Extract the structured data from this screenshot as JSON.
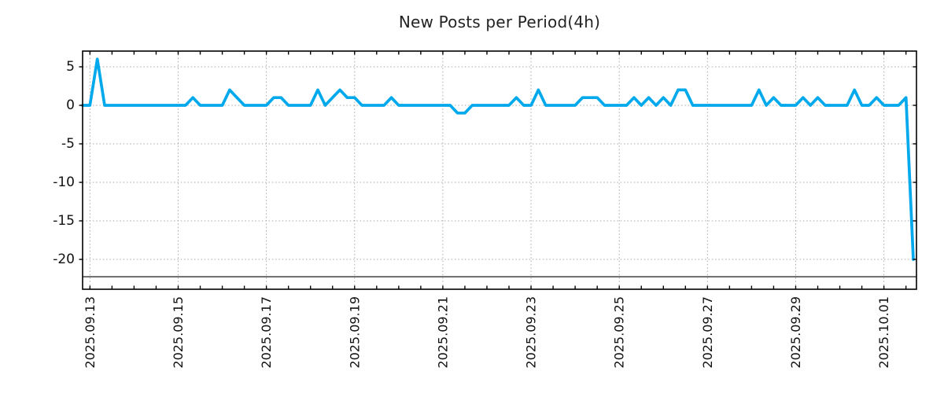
{
  "chart_data": {
    "type": "line",
    "title": "New Posts per Period(4h)",
    "period_hours": 4,
    "line_color": "#00a8ec",
    "grid_color": "#a8a8a8",
    "axis_color": "#000000",
    "grid_style": "dotted",
    "legend": "none",
    "values": [
      0,
      0,
      6,
      0,
      0,
      0,
      0,
      0,
      0,
      0,
      0,
      0,
      0,
      0,
      0,
      1,
      0,
      0,
      0,
      0,
      2,
      1,
      0,
      0,
      0,
      0,
      1,
      1,
      0,
      0,
      0,
      0,
      2,
      0,
      1,
      2,
      1,
      1,
      0,
      0,
      0,
      0,
      1,
      0,
      0,
      0,
      0,
      0,
      0,
      0,
      0,
      -1,
      -1,
      0,
      0,
      0,
      0,
      0,
      0,
      1,
      0,
      0,
      2,
      0,
      0,
      0,
      0,
      0,
      1,
      1,
      1,
      0,
      0,
      0,
      0,
      1,
      0,
      1,
      0,
      1,
      0,
      2,
      2,
      0,
      0,
      0,
      0,
      0,
      0,
      0,
      0,
      0,
      2,
      0,
      1,
      0,
      0,
      0,
      1,
      0,
      1,
      0,
      0,
      0,
      0,
      2,
      0,
      0,
      1,
      0,
      0,
      0,
      1,
      -20
    ],
    "x_axis": {
      "tick_labels": [
        "2025.09.13",
        "2025.09.15",
        "2025.09.17",
        "2025.09.19",
        "2025.09.21",
        "2025.09.23",
        "2025.09.25",
        "2025.09.27",
        "2025.09.29",
        "2025.10.01"
      ],
      "tick_period_indices": [
        1,
        13,
        25,
        37,
        49,
        61,
        73,
        85,
        97,
        109
      ],
      "minor_tick_every_periods": 3,
      "periods_between_major_ticks": 12
    },
    "y_axis": {
      "ticks": [
        5,
        0,
        -5,
        -10,
        -15,
        -20
      ],
      "min": -23.9,
      "max": 7.05
    },
    "baseline_rule_value": -22.25
  }
}
